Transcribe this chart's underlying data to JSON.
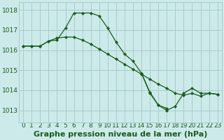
{
  "title": "Graphe pression niveau de la mer (hPa)",
  "background_color": "#cceaea",
  "grid_color": "#aacccc",
  "line_color": "#1a5c1a",
  "marker_color": "#1a5c1a",
  "xlim": [
    -0.5,
    23.5
  ],
  "ylim": [
    1012.4,
    1018.4
  ],
  "yticks": [
    1013,
    1014,
    1015,
    1016,
    1017,
    1018
  ],
  "xtick_labels": [
    "0",
    "1",
    "2",
    "3",
    "4",
    "5",
    "6",
    "7",
    "8",
    "9",
    "10",
    "11",
    "12",
    "13",
    "14",
    "15",
    "16",
    "17",
    "18",
    "19",
    "20",
    "21",
    "22",
    "23"
  ],
  "series": [
    {
      "x": [
        0,
        1,
        2,
        3,
        4,
        5,
        6,
        7,
        8,
        9,
        10,
        11,
        12,
        13,
        14,
        15,
        16,
        17
      ],
      "y": [
        1016.2,
        1016.2,
        1016.2,
        1016.45,
        1016.5,
        1017.1,
        1017.85,
        1017.85,
        1017.85,
        1017.7,
        1017.1,
        1016.4,
        1015.8,
        1015.45,
        1014.85,
        1013.9,
        1013.25,
        1013.1
      ]
    },
    {
      "x": [
        0,
        1,
        2,
        3,
        4,
        5,
        6,
        7,
        8,
        9,
        10,
        11,
        12,
        13,
        14,
        15,
        16,
        17,
        18,
        19,
        20,
        21,
        22,
        23
      ],
      "y": [
        1016.2,
        1016.2,
        1016.2,
        1016.45,
        1016.6,
        1016.65,
        1016.65,
        1016.5,
        1016.3,
        1016.05,
        1015.8,
        1015.55,
        1015.3,
        1015.05,
        1014.8,
        1014.55,
        1014.3,
        1014.1,
        1013.85,
        1013.75,
        1013.85,
        1013.7,
        1013.85,
        1013.8
      ]
    },
    {
      "x": [
        14,
        15,
        16,
        17,
        18,
        19,
        20,
        21,
        22,
        23
      ],
      "y": [
        1014.85,
        1013.85,
        1013.25,
        1013.0,
        1013.2,
        1013.85,
        1014.1,
        1013.85,
        1013.85,
        1013.8
      ]
    }
  ],
  "title_fontsize": 8,
  "tick_fontsize": 6.5
}
